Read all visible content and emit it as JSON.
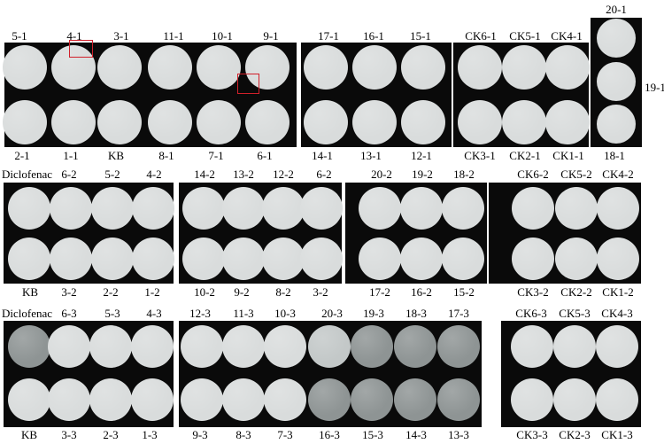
{
  "panels": [
    {
      "top_labels": [
        "5-1",
        "4-1",
        "3-1",
        "11-1",
        "10-1",
        "9-1",
        "17-1",
        "16-1",
        "15-1",
        "CK6-1",
        "CK5-1",
        "CK4-1"
      ],
      "bottom_labels": [
        "2-1",
        "1-1",
        "KB",
        "8-1",
        "7-1",
        "6-1",
        "14-1",
        "13-1",
        "12-1",
        "CK3-1",
        "CK2-1",
        "CK1-1"
      ],
      "side_labels": [
        "20-1",
        "19-1",
        "18-1"
      ]
    },
    {
      "top_labels": [
        "Diclofenac",
        "6-2",
        "5-2",
        "4-2",
        "14-2",
        "13-2",
        "12-2",
        "6-2",
        "20-2",
        "19-2",
        "18-2",
        "CK6-2",
        "CK5-2",
        "CK4-2"
      ],
      "bottom_labels": [
        "KB",
        "3-2",
        "2-2",
        "1-2",
        "10-2",
        "9-2",
        "8-2",
        "3-2",
        "17-2",
        "16-2",
        "15-2",
        "CK3-2",
        "CK2-2",
        "CK1-2"
      ]
    },
    {
      "top_labels": [
        "Diclofenac",
        "6-3",
        "5-3",
        "4-3",
        "12-3",
        "11-3",
        "10-3",
        "20-3",
        "19-3",
        "18-3",
        "17-3",
        "CK6-3",
        "CK5-3",
        "CK4-3"
      ],
      "bottom_labels": [
        "KB",
        "3-3",
        "2-3",
        "1-3",
        "9-3",
        "8-3",
        "7-3",
        "16-3",
        "15-3",
        "14-3",
        "13-3",
        "CK3-3",
        "CK2-3",
        "CK1-3"
      ]
    }
  ],
  "colors": {
    "background": "#ffffff",
    "strip": "#0a0a0a",
    "dish_light": "#d9dcdc",
    "dish_mid": "#c3c8c8",
    "dish_dark": "#8e9494",
    "marker": "#d0202a"
  }
}
